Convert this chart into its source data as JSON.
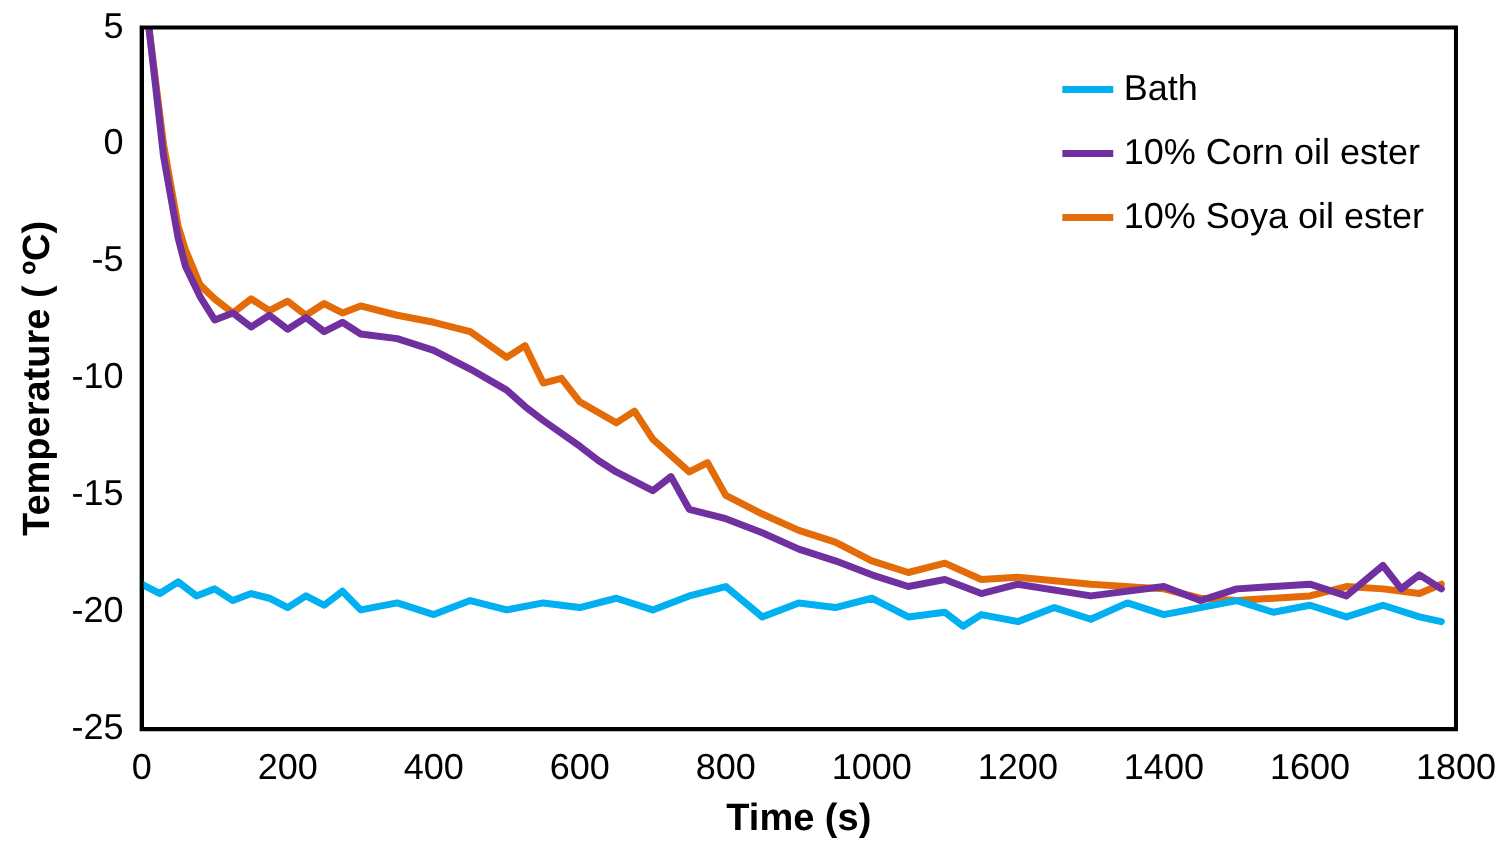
{
  "chart_data": {
    "type": "line",
    "xlabel": "Time (s)",
    "ylabel": "Temperature ( ºC)",
    "xlim": [
      0,
      1800
    ],
    "xticks": [
      0,
      200,
      400,
      600,
      800,
      1000,
      1200,
      1400,
      1600,
      1800
    ],
    "ylim": [
      -25,
      5
    ],
    "yticks": [
      -25,
      -20,
      -15,
      -10,
      -5,
      0,
      5
    ],
    "grid": false,
    "legend": "top right",
    "marker": "none",
    "line_style": "solid",
    "series": [
      {
        "name": "Bath",
        "color": "#00b0f0",
        "x": [
          0,
          25,
          50,
          75,
          100,
          125,
          150,
          175,
          200,
          225,
          250,
          275,
          300,
          350,
          400,
          450,
          500,
          550,
          600,
          650,
          700,
          750,
          800,
          850,
          900,
          950,
          1000,
          1050,
          1100,
          1125,
          1150,
          1200,
          1250,
          1300,
          1350,
          1400,
          1450,
          1500,
          1550,
          1600,
          1650,
          1700,
          1750,
          1780
        ],
        "values": [
          -18.8,
          -19.2,
          -18.7,
          -19.3,
          -19.0,
          -19.5,
          -19.2,
          -19.4,
          -19.8,
          -19.3,
          -19.7,
          -19.1,
          -19.9,
          -19.6,
          -20.1,
          -19.5,
          -19.9,
          -19.6,
          -19.8,
          -19.4,
          -19.9,
          -19.3,
          -18.9,
          -20.2,
          -19.6,
          -19.8,
          -19.4,
          -20.2,
          -20.0,
          -20.6,
          -20.1,
          -20.4,
          -19.8,
          -20.3,
          -19.6,
          -20.1,
          -19.8,
          -19.5,
          -20.0,
          -19.7,
          -20.2,
          -19.7,
          -20.2,
          -20.4
        ]
      },
      {
        "name": "10% Corn oil ester",
        "color": "#7030a0",
        "x": [
          10,
          30,
          50,
          60,
          80,
          100,
          125,
          150,
          175,
          200,
          225,
          250,
          275,
          300,
          350,
          400,
          450,
          500,
          525,
          550,
          600,
          625,
          650,
          700,
          725,
          750,
          800,
          850,
          900,
          950,
          1000,
          1050,
          1100,
          1150,
          1200,
          1300,
          1400,
          1450,
          1500,
          1600,
          1650,
          1700,
          1725,
          1750,
          1780
        ],
        "values": [
          5,
          -0.5,
          -4,
          -5.2,
          -6.5,
          -7.5,
          -7.2,
          -7.8,
          -7.3,
          -7.9,
          -7.4,
          -8.0,
          -7.6,
          -8.1,
          -8.3,
          -8.8,
          -9.6,
          -10.5,
          -11.2,
          -11.8,
          -12.9,
          -13.5,
          -14.0,
          -14.8,
          -14.2,
          -15.6,
          -16.0,
          -16.6,
          -17.3,
          -17.8,
          -18.4,
          -18.9,
          -18.6,
          -19.2,
          -18.8,
          -19.3,
          -18.9,
          -19.5,
          -19.0,
          -18.8,
          -19.3,
          -18.0,
          -19.0,
          -18.4,
          -19.0
        ]
      },
      {
        "name": "10% Soya oil ester",
        "color": "#e36c09",
        "x": [
          10,
          30,
          50,
          60,
          80,
          100,
          125,
          150,
          175,
          200,
          225,
          250,
          275,
          300,
          350,
          400,
          450,
          500,
          525,
          550,
          575,
          600,
          650,
          675,
          700,
          750,
          775,
          800,
          850,
          900,
          950,
          1000,
          1050,
          1100,
          1150,
          1200,
          1300,
          1400,
          1450,
          1500,
          1600,
          1650,
          1700,
          1750,
          1780
        ],
        "values": [
          5,
          0,
          -3.5,
          -4.5,
          -6.0,
          -6.6,
          -7.2,
          -6.6,
          -7.1,
          -6.7,
          -7.3,
          -6.8,
          -7.2,
          -6.9,
          -7.3,
          -7.6,
          -8.0,
          -9.1,
          -8.6,
          -10.2,
          -10.0,
          -11.0,
          -11.9,
          -11.4,
          -12.6,
          -14.0,
          -13.6,
          -15.0,
          -15.8,
          -16.5,
          -17.0,
          -17.8,
          -18.3,
          -17.9,
          -18.6,
          -18.5,
          -18.8,
          -19.0,
          -19.4,
          -19.5,
          -19.3,
          -18.9,
          -19.0,
          -19.2,
          -18.8
        ]
      }
    ]
  }
}
